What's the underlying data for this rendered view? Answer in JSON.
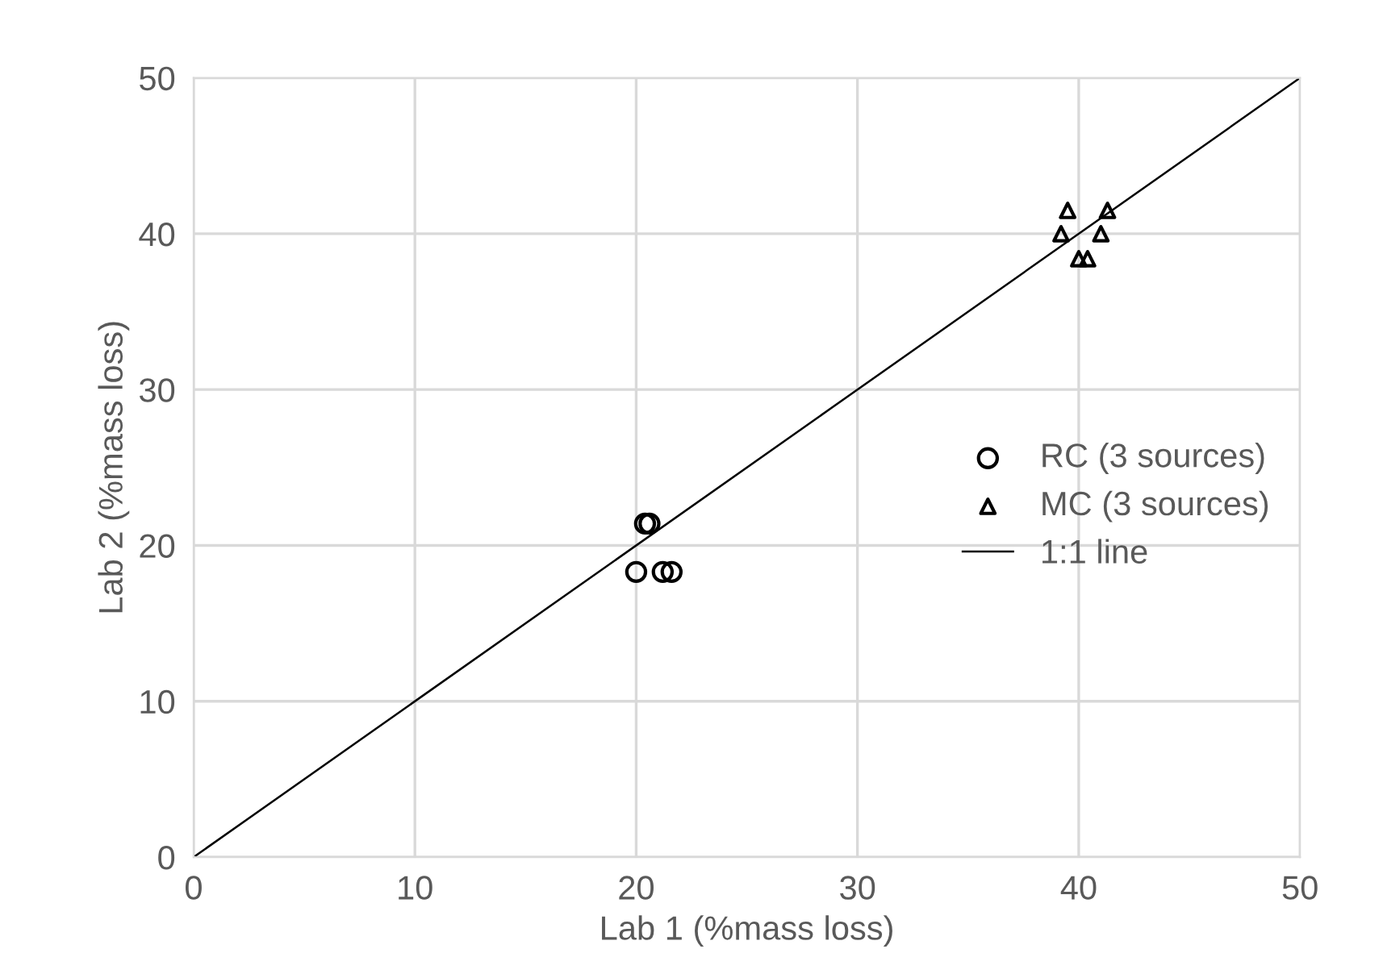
{
  "chart_data": {
    "type": "scatter",
    "xlabel": "Lab 1 (%mass loss)",
    "ylabel": "Lab 2 (%mass loss)",
    "xlim": [
      0,
      50
    ],
    "ylim": [
      0,
      50
    ],
    "xticks": [
      0,
      10,
      20,
      30,
      40,
      50
    ],
    "yticks": [
      0,
      10,
      20,
      30,
      40,
      50
    ],
    "grid": true,
    "legend": "right",
    "series": [
      {
        "name": "RC (3 sources)",
        "color": "#000000",
        "marker": "circle",
        "x": [
          20.0,
          21.2,
          21.6,
          20.4,
          20.6
        ],
        "values": [
          18.3,
          18.3,
          18.3,
          21.4,
          21.4
        ]
      },
      {
        "name": "MC (3 sources)",
        "color": "#000000",
        "marker": "triangle",
        "x": [
          39.5,
          41.3,
          39.2,
          41.0,
          40.0,
          40.4
        ],
        "values": [
          41.5,
          41.5,
          40.0,
          40.0,
          38.4,
          38.4
        ]
      },
      {
        "name": "1:1 line",
        "type": "line",
        "color": "#000000",
        "marker": "none",
        "x": [
          0,
          50
        ],
        "values": [
          0,
          50
        ]
      }
    ]
  }
}
